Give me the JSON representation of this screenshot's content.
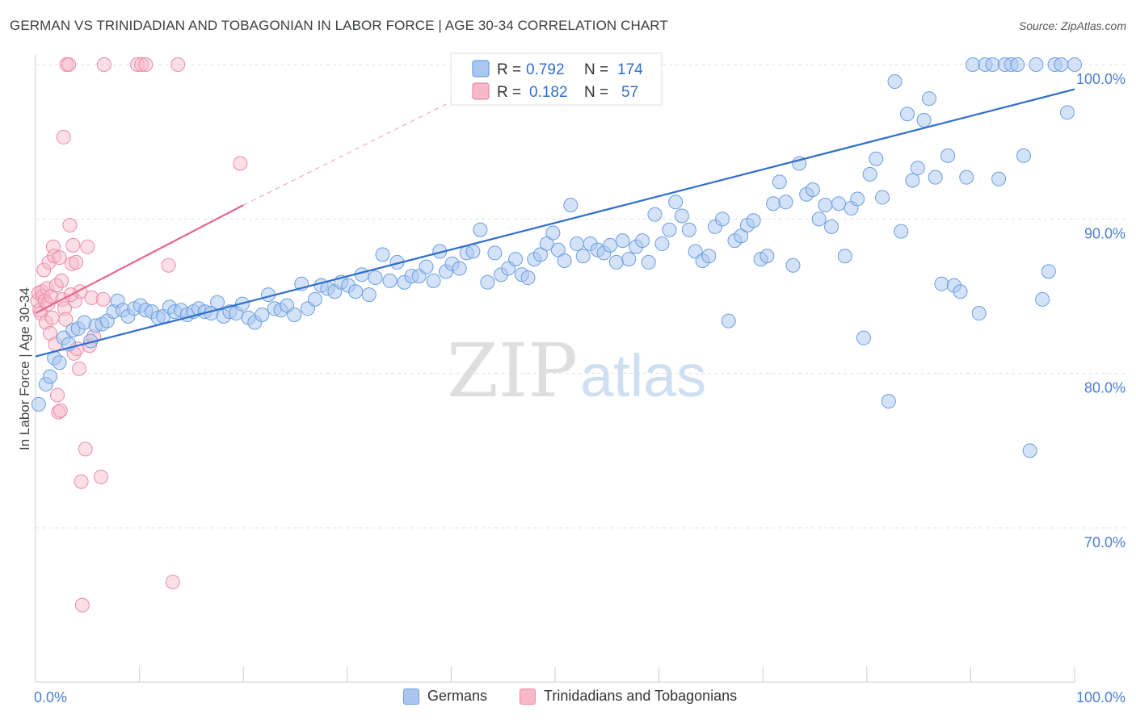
{
  "header": {
    "title": "GERMAN VS TRINIDADIAN AND TOBAGONIAN IN LABOR FORCE | AGE 30-34 CORRELATION CHART",
    "source": "Source: ZipAtlas.com"
  },
  "watermark": {
    "zip": "ZIP",
    "atlas": "atlas"
  },
  "colors": {
    "blue_fill": "#a9c6ef",
    "blue_stroke": "#6a9ee0",
    "blue_line": "#2f6fcc",
    "pink_fill": "#f7b8c9",
    "pink_stroke": "#ec8aa8",
    "pink_line": "#e8648a",
    "axis_text": "#4a7fd0",
    "grid": "#dde1e6"
  },
  "legend_top": {
    "rows": [
      {
        "r_label": "R =",
        "r_value": "0.792",
        "n_label": "N =",
        "n_value": "174"
      },
      {
        "r_label": "R =",
        "r_value": "0.182",
        "n_label": "N =",
        "n_value": "57"
      }
    ]
  },
  "legend_bottom": {
    "items": [
      "Germans",
      "Trinidadians and Tobagonians"
    ]
  },
  "chart_data": {
    "type": "scatter",
    "xlabel": "",
    "ylabel": "In Labor Force | Age 30-34",
    "xlim": [
      0,
      100
    ],
    "ylim": [
      60.5,
      101
    ],
    "x_tick_labels": [
      "0.0%",
      "100.0%"
    ],
    "y_ticks": [
      70,
      80,
      90,
      100
    ],
    "y_tick_labels": [
      "70.0%",
      "80.0%",
      "90.0%",
      "100.0%"
    ],
    "grid": true,
    "legend_placement": "top-center",
    "series": [
      {
        "name": "Germans",
        "R": 0.792,
        "N": 174,
        "trend": {
          "x": [
            0,
            100
          ],
          "y": [
            81.1,
            98.4
          ]
        },
        "points": [
          [
            0.3,
            78.0
          ],
          [
            1.0,
            79.3
          ],
          [
            1.4,
            79.8
          ],
          [
            1.8,
            81.0
          ],
          [
            2.3,
            80.7
          ],
          [
            2.7,
            82.3
          ],
          [
            3.2,
            81.9
          ],
          [
            3.6,
            82.8
          ],
          [
            4.1,
            82.9
          ],
          [
            4.7,
            83.3
          ],
          [
            5.3,
            82.1
          ],
          [
            5.8,
            83.1
          ],
          [
            6.4,
            83.2
          ],
          [
            6.9,
            83.4
          ],
          [
            7.5,
            84.0
          ],
          [
            7.9,
            84.7
          ],
          [
            8.4,
            84.1
          ],
          [
            8.9,
            83.7
          ],
          [
            9.5,
            84.2
          ],
          [
            10.1,
            84.4
          ],
          [
            10.6,
            84.1
          ],
          [
            11.2,
            84.0
          ],
          [
            11.8,
            83.6
          ],
          [
            12.3,
            83.7
          ],
          [
            12.9,
            84.3
          ],
          [
            13.4,
            84.0
          ],
          [
            14.0,
            84.1
          ],
          [
            14.6,
            83.8
          ],
          [
            15.2,
            84.0
          ],
          [
            15.7,
            84.2
          ],
          [
            16.3,
            84.0
          ],
          [
            16.9,
            83.9
          ],
          [
            17.5,
            84.6
          ],
          [
            18.1,
            83.7
          ],
          [
            18.7,
            84.0
          ],
          [
            19.3,
            83.9
          ],
          [
            19.9,
            84.5
          ],
          [
            20.5,
            83.6
          ],
          [
            21.1,
            83.3
          ],
          [
            21.8,
            83.8
          ],
          [
            22.4,
            85.1
          ],
          [
            23.0,
            84.2
          ],
          [
            23.6,
            84.1
          ],
          [
            24.2,
            84.4
          ],
          [
            24.9,
            83.8
          ],
          [
            25.6,
            85.8
          ],
          [
            26.2,
            84.2
          ],
          [
            26.9,
            84.8
          ],
          [
            27.5,
            85.7
          ],
          [
            28.1,
            85.5
          ],
          [
            28.8,
            85.3
          ],
          [
            29.4,
            85.9
          ],
          [
            30.1,
            85.7
          ],
          [
            30.8,
            85.3
          ],
          [
            31.4,
            86.4
          ],
          [
            32.1,
            85.1
          ],
          [
            32.7,
            86.2
          ],
          [
            33.4,
            87.7
          ],
          [
            34.1,
            86.0
          ],
          [
            34.8,
            87.2
          ],
          [
            35.5,
            85.9
          ],
          [
            36.2,
            86.3
          ],
          [
            36.9,
            86.3
          ],
          [
            37.6,
            86.9
          ],
          [
            38.3,
            86.0
          ],
          [
            38.9,
            87.9
          ],
          [
            39.5,
            86.6
          ],
          [
            40.1,
            87.1
          ],
          [
            40.8,
            86.8
          ],
          [
            41.5,
            87.8
          ],
          [
            42.1,
            87.9
          ],
          [
            42.8,
            89.3
          ],
          [
            43.5,
            85.9
          ],
          [
            44.2,
            87.8
          ],
          [
            44.8,
            86.4
          ],
          [
            45.5,
            86.8
          ],
          [
            46.2,
            87.4
          ],
          [
            46.8,
            86.4
          ],
          [
            47.4,
            86.2
          ],
          [
            48.0,
            87.4
          ],
          [
            48.6,
            87.7
          ],
          [
            49.2,
            88.4
          ],
          [
            49.8,
            89.1
          ],
          [
            50.3,
            88.0
          ],
          [
            50.9,
            87.3
          ],
          [
            51.5,
            90.9
          ],
          [
            52.1,
            88.4
          ],
          [
            52.7,
            87.6
          ],
          [
            53.4,
            88.4
          ],
          [
            54.1,
            88.0
          ],
          [
            54.7,
            87.8
          ],
          [
            55.3,
            88.3
          ],
          [
            55.9,
            87.2
          ],
          [
            56.5,
            88.6
          ],
          [
            57.1,
            87.4
          ],
          [
            57.8,
            88.2
          ],
          [
            58.4,
            88.6
          ],
          [
            59.0,
            87.2
          ],
          [
            59.6,
            90.3
          ],
          [
            60.3,
            88.4
          ],
          [
            61.0,
            89.3
          ],
          [
            61.6,
            91.1
          ],
          [
            62.2,
            90.2
          ],
          [
            62.9,
            89.3
          ],
          [
            63.5,
            87.9
          ],
          [
            64.2,
            87.3
          ],
          [
            64.8,
            87.6
          ],
          [
            65.4,
            89.5
          ],
          [
            66.1,
            90.0
          ],
          [
            66.7,
            83.4
          ],
          [
            67.3,
            88.6
          ],
          [
            67.9,
            88.9
          ],
          [
            68.5,
            89.6
          ],
          [
            69.1,
            89.9
          ],
          [
            69.8,
            87.4
          ],
          [
            70.4,
            87.6
          ],
          [
            71.0,
            91.0
          ],
          [
            71.6,
            92.4
          ],
          [
            72.2,
            91.1
          ],
          [
            72.9,
            87.0
          ],
          [
            73.5,
            93.6
          ],
          [
            74.2,
            91.6
          ],
          [
            74.8,
            91.9
          ],
          [
            75.4,
            90.0
          ],
          [
            76.0,
            90.9
          ],
          [
            76.6,
            89.5
          ],
          [
            77.3,
            91.0
          ],
          [
            77.9,
            87.6
          ],
          [
            78.5,
            90.7
          ],
          [
            79.1,
            91.3
          ],
          [
            79.7,
            82.3
          ],
          [
            80.3,
            92.9
          ],
          [
            80.9,
            93.9
          ],
          [
            81.5,
            91.4
          ],
          [
            82.1,
            78.2
          ],
          [
            82.7,
            98.9
          ],
          [
            83.3,
            89.2
          ],
          [
            83.9,
            96.8
          ],
          [
            84.4,
            92.5
          ],
          [
            84.9,
            93.3
          ],
          [
            85.5,
            96.4
          ],
          [
            86.0,
            97.8
          ],
          [
            86.6,
            92.7
          ],
          [
            87.2,
            85.8
          ],
          [
            87.8,
            94.1
          ],
          [
            88.4,
            85.7
          ],
          [
            89.0,
            85.3
          ],
          [
            89.6,
            92.7
          ],
          [
            90.2,
            100.0
          ],
          [
            90.8,
            83.9
          ],
          [
            91.4,
            100.0
          ],
          [
            92.1,
            100.0
          ],
          [
            92.7,
            92.6
          ],
          [
            93.3,
            100.0
          ],
          [
            93.9,
            100.0
          ],
          [
            94.5,
            100.0
          ],
          [
            95.1,
            94.1
          ],
          [
            95.7,
            75.0
          ],
          [
            96.3,
            100.0
          ],
          [
            96.9,
            84.8
          ],
          [
            97.5,
            86.6
          ],
          [
            98.1,
            100.0
          ],
          [
            98.7,
            100.0
          ],
          [
            99.3,
            96.9
          ],
          [
            100.0,
            100.0
          ]
        ]
      },
      {
        "name": "Trinidadians and Tobagonians",
        "R": 0.182,
        "N": 57,
        "trend": {
          "x": [
            0,
            20
          ],
          "y": [
            83.9,
            90.9
          ]
        },
        "trend_dashed": {
          "x": [
            20,
            43
          ],
          "y": [
            90.9,
            98.6
          ]
        },
        "points": [
          [
            0.2,
            84.7
          ],
          [
            0.3,
            85.2
          ],
          [
            0.4,
            84.1
          ],
          [
            0.5,
            83.9
          ],
          [
            0.6,
            85.3
          ],
          [
            0.7,
            85.0
          ],
          [
            0.8,
            86.7
          ],
          [
            0.9,
            84.7
          ],
          [
            1.0,
            83.3
          ],
          [
            1.1,
            85.5
          ],
          [
            1.2,
            84.5
          ],
          [
            1.3,
            87.2
          ],
          [
            1.4,
            82.6
          ],
          [
            1.5,
            85.0
          ],
          [
            1.6,
            83.6
          ],
          [
            1.7,
            88.2
          ],
          [
            1.8,
            87.6
          ],
          [
            1.9,
            81.9
          ],
          [
            2.0,
            85.7
          ],
          [
            2.1,
            78.6
          ],
          [
            2.2,
            77.5
          ],
          [
            2.4,
            77.6
          ],
          [
            2.5,
            86.0
          ],
          [
            2.6,
            84.8
          ],
          [
            2.7,
            95.3
          ],
          [
            2.8,
            84.2
          ],
          [
            2.9,
            83.5
          ],
          [
            3.0,
            100.0
          ],
          [
            3.2,
            100.0
          ],
          [
            3.3,
            89.6
          ],
          [
            3.5,
            87.1
          ],
          [
            3.6,
            88.3
          ],
          [
            3.7,
            81.3
          ],
          [
            3.8,
            84.7
          ],
          [
            3.9,
            87.2
          ],
          [
            4.0,
            81.6
          ],
          [
            4.2,
            80.3
          ],
          [
            4.4,
            73.0
          ],
          [
            4.5,
            65.0
          ],
          [
            4.8,
            75.1
          ],
          [
            5.0,
            88.2
          ],
          [
            5.2,
            81.8
          ],
          [
            5.4,
            84.9
          ],
          [
            5.6,
            82.4
          ],
          [
            6.3,
            73.3
          ],
          [
            6.5,
            84.8
          ],
          [
            6.6,
            100.0
          ],
          [
            9.8,
            100.0
          ],
          [
            10.2,
            100.0
          ],
          [
            10.6,
            100.0
          ],
          [
            12.8,
            87.0
          ],
          [
            13.2,
            66.5
          ],
          [
            13.7,
            100.0
          ],
          [
            19.7,
            93.6
          ],
          [
            4.3,
            85.3
          ],
          [
            3.4,
            85.1
          ],
          [
            2.3,
            87.5
          ]
        ]
      }
    ]
  }
}
